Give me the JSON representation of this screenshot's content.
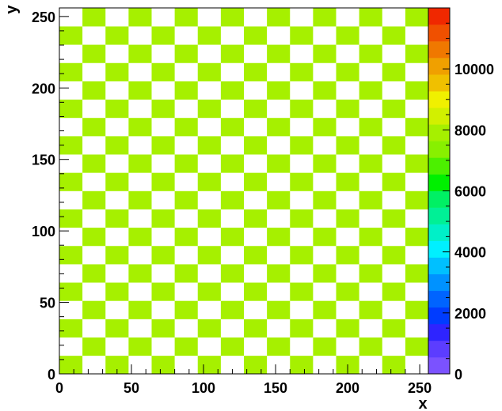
{
  "chart_data": {
    "type": "heatmap",
    "xlabel": "x",
    "ylabel": "y",
    "xlim": [
      0,
      256
    ],
    "ylim": [
      0,
      256
    ],
    "x_ticks": [
      0,
      50,
      100,
      150,
      200,
      250
    ],
    "y_ticks": [
      0,
      50,
      100,
      150,
      200,
      250
    ],
    "pattern": {
      "kind": "checkerboard",
      "cell_width": 16,
      "cell_height": 12.8,
      "columns": 16,
      "rows": 20,
      "filled_value": 8300,
      "empty_value": 0,
      "filled_color": "#a6f000",
      "empty_color": "#ffffff"
    },
    "colorbar": {
      "min": 0,
      "max": 12000,
      "tick_values": [
        0,
        2000,
        4000,
        6000,
        8000,
        10000
      ],
      "tick_labels": [
        "0",
        "2000",
        "4000",
        "6000",
        "8000",
        "10000"
      ],
      "colors": [
        "#7b52ff",
        "#5c3dff",
        "#2e24ff",
        "#003cff",
        "#0064ff",
        "#0092ff",
        "#00c0ff",
        "#00f0ff",
        "#00f0c8",
        "#00f096",
        "#00f064",
        "#00f000",
        "#4cf000",
        "#88f000",
        "#a6f000",
        "#d2f000",
        "#f0f000",
        "#f0c000",
        "#f0a000",
        "#f07800",
        "#f05000",
        "#f02800"
      ]
    }
  }
}
